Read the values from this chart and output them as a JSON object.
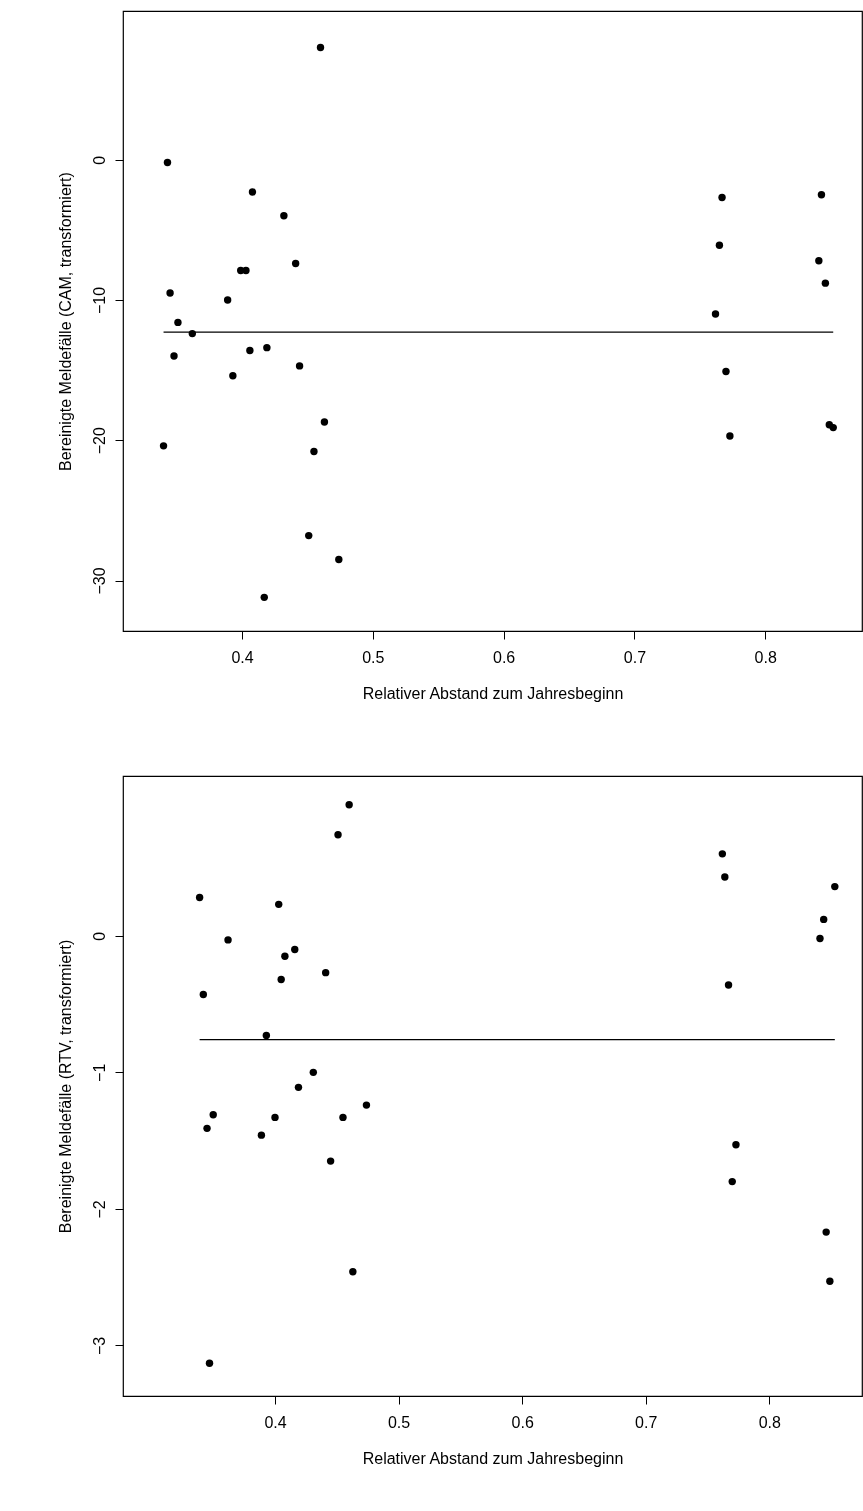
{
  "chart_data": [
    {
      "type": "scatter",
      "xlabel": "Relativer Abstand zum Jahresbeginn",
      "ylabel": "Bereinigte Meldefälle (CAM, transformiert)",
      "xlim": [
        0.309,
        0.874
      ],
      "ylim": [
        -33.6,
        10.6
      ],
      "xticks": [
        0.4,
        0.5,
        0.6,
        0.7,
        0.8
      ],
      "yticks": [
        -30,
        -20,
        -10,
        0
      ],
      "series": [
        {
          "type": "scatter",
          "marker": "circle",
          "color": "#000000",
          "x": [
            0.46,
            0.343,
            0.408,
            0.432,
            0.399,
            0.403,
            0.441,
            0.345,
            0.389,
            0.351,
            0.362,
            0.406,
            0.419,
            0.348,
            0.444,
            0.393,
            0.463,
            0.34,
            0.455,
            0.451,
            0.474,
            0.417,
            0.767,
            0.765,
            0.762,
            0.77,
            0.773,
            0.843,
            0.841,
            0.846,
            0.849,
            0.852
          ],
          "values": [
            8.0,
            -0.2,
            -2.3,
            -4.0,
            -7.9,
            -7.9,
            -7.4,
            -9.5,
            -10.0,
            -11.6,
            -12.4,
            -13.6,
            -13.4,
            -14.0,
            -14.7,
            -15.4,
            -18.7,
            -20.4,
            -20.8,
            -26.8,
            -28.5,
            -31.2,
            -2.7,
            -6.1,
            -11.0,
            -15.1,
            -19.7,
            -2.5,
            -7.2,
            -8.8,
            -18.9,
            -19.1
          ]
        },
        {
          "type": "line",
          "color": "#000000",
          "x": [
            0.34,
            0.852
          ],
          "values": [
            -12.3,
            -12.3
          ]
        }
      ]
    },
    {
      "type": "scatter",
      "xlabel": "Relativer Abstand zum Jahresbeginn",
      "ylabel": "Bereinigte Meldefälle (RTV, transformiert)",
      "xlim": [
        0.277,
        0.875
      ],
      "ylim": [
        -3.37,
        1.17
      ],
      "xticks": [
        0.4,
        0.5,
        0.6,
        0.7,
        0.8
      ],
      "yticks": [
        -3,
        -2,
        -1,
        0
      ],
      "series": [
        {
          "type": "scatter",
          "marker": "circle",
          "color": "#000000",
          "x": [
            0.46,
            0.451,
            0.339,
            0.403,
            0.362,
            0.416,
            0.408,
            0.441,
            0.405,
            0.342,
            0.393,
            0.431,
            0.419,
            0.474,
            0.35,
            0.4,
            0.455,
            0.345,
            0.389,
            0.445,
            0.463,
            0.347,
            0.762,
            0.764,
            0.767,
            0.853,
            0.844,
            0.841,
            0.773,
            0.77,
            0.846,
            0.849
          ],
          "values": [
            0.96,
            0.74,
            0.28,
            0.23,
            -0.03,
            -0.1,
            -0.15,
            -0.27,
            -0.32,
            -0.43,
            -0.73,
            -1.0,
            -1.11,
            -1.24,
            -1.31,
            -1.33,
            -1.33,
            -1.41,
            -1.46,
            -1.65,
            -2.46,
            -3.13,
            0.6,
            0.43,
            -0.36,
            0.36,
            0.12,
            -0.02,
            -1.53,
            -1.8,
            -2.17,
            -2.53
          ]
        },
        {
          "type": "line",
          "color": "#000000",
          "x": [
            0.339,
            0.853
          ],
          "values": [
            -0.76,
            -0.76
          ]
        }
      ]
    }
  ]
}
